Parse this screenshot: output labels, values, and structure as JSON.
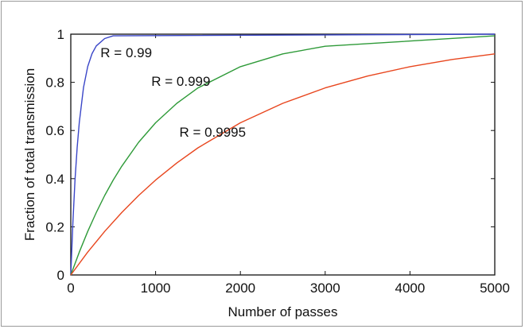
{
  "chart_data": {
    "type": "line",
    "title": "",
    "xlabel": "Number of passes",
    "ylabel": "Fraction of total transmission",
    "xlim": [
      0,
      5000
    ],
    "ylim": [
      0,
      1
    ],
    "x_ticks": [
      "0",
      "1000",
      "2000",
      "3000",
      "4000",
      "5000"
    ],
    "y_ticks": [
      "0",
      "0.2",
      "0.4",
      "0.6",
      "0.8",
      "1"
    ],
    "grid": false,
    "legend": "none",
    "series": [
      {
        "name": "R = 0.99",
        "color": "#3a46c8",
        "x": [
          0,
          25,
          50,
          75,
          100,
          150,
          200,
          250,
          300,
          400,
          500,
          5000
        ],
        "y": [
          0,
          0.222,
          0.395,
          0.529,
          0.634,
          0.779,
          0.866,
          0.919,
          0.951,
          0.982,
          0.993,
          1.0
        ]
      },
      {
        "name": "R = 0.999",
        "color": "#2e9a38",
        "x": [
          0,
          100,
          200,
          300,
          400,
          500,
          600,
          800,
          1000,
          1250,
          1500,
          2000,
          2500,
          3000,
          5000
        ],
        "y": [
          0,
          0.095,
          0.181,
          0.259,
          0.33,
          0.394,
          0.451,
          0.551,
          0.632,
          0.713,
          0.777,
          0.865,
          0.918,
          0.95,
          0.993
        ]
      },
      {
        "name": "R = 0.9995",
        "color": "#e8461e",
        "x": [
          0,
          200,
          400,
          600,
          800,
          1000,
          1250,
          1500,
          2000,
          2500,
          3000,
          3500,
          4000,
          4500,
          5000
        ],
        "y": [
          0,
          0.095,
          0.181,
          0.259,
          0.33,
          0.394,
          0.465,
          0.528,
          0.632,
          0.713,
          0.777,
          0.826,
          0.865,
          0.895,
          0.918
        ]
      }
    ],
    "annotations": [
      {
        "text": "R = 0.99",
        "x": 350,
        "y": 0.905
      },
      {
        "text": "R = 0.999",
        "x": 950,
        "y": 0.785
      },
      {
        "text": "R = 0.9995",
        "x": 1280,
        "y": 0.575
      }
    ]
  }
}
